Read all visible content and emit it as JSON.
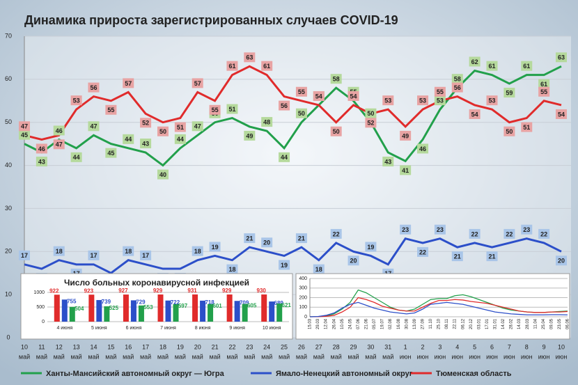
{
  "chart_data": [
    {
      "type": "line",
      "title": "Динамика прироста зарегистрированных случаев COVID-19",
      "categories": [
        "10",
        "11",
        "12",
        "13",
        "14",
        "15",
        "16",
        "17",
        "18",
        "19",
        "20",
        "21",
        "22",
        "23",
        "24",
        "25",
        "26",
        "27",
        "28",
        "29",
        "30",
        "31",
        "1",
        "2",
        "3",
        "4",
        "5",
        "6",
        "7",
        "8",
        "9",
        "10"
      ],
      "category_months": [
        "май",
        "май",
        "май",
        "май",
        "май",
        "май",
        "май",
        "май",
        "май",
        "май",
        "май",
        "май",
        "май",
        "май",
        "май",
        "май",
        "май",
        "май",
        "май",
        "май",
        "май",
        "май",
        "июн",
        "июн",
        "июн",
        "июн",
        "июн",
        "июн",
        "июн",
        "июн",
        "июн",
        "июн"
      ],
      "ylim": [
        0,
        70
      ],
      "yticks": [
        0,
        10,
        20,
        30,
        40,
        50,
        60,
        70
      ],
      "grid": true,
      "legend": "bottom",
      "series": [
        {
          "name": "Ханты-Мансийский автономный округ — Югра",
          "color": "#22a04b",
          "label_color": "#b5d99c",
          "values": [
            45,
            43,
            46,
            44,
            47,
            45,
            44,
            43,
            40,
            44,
            47,
            50,
            51,
            49,
            48,
            44,
            50,
            54,
            58,
            55,
            50,
            43,
            41,
            46,
            53,
            58,
            62,
            61,
            59,
            61,
            61,
            63
          ]
        },
        {
          "name": "Ямало-Ненецкий автономный округ",
          "color": "#2c4fc9",
          "label_color": "#a9c5e8",
          "values": [
            17,
            16,
            18,
            17,
            17,
            15,
            18,
            17,
            16,
            16,
            18,
            19,
            18,
            21,
            20,
            19,
            21,
            18,
            22,
            20,
            19,
            17,
            23,
            22,
            23,
            21,
            22,
            21,
            22,
            23,
            22,
            20
          ]
        },
        {
          "name": "Тюменская область",
          "color": "#e02b2b",
          "label_color": "#e8a3a3",
          "values": [
            47,
            46,
            47,
            53,
            56,
            55,
            57,
            52,
            50,
            51,
            57,
            55,
            61,
            63,
            61,
            56,
            55,
            54,
            50,
            54,
            52,
            53,
            49,
            53,
            55,
            56,
            54,
            53,
            50,
            51,
            55,
            54
          ]
        }
      ]
    },
    {
      "type": "bar",
      "title": "Число больных коронавирусной инфекцией",
      "categories": [
        "4 июня",
        "5 июня",
        "6 июня",
        "7 июня",
        "8 июня",
        "9 июня",
        "10 июня"
      ],
      "ylim": [
        0,
        1000
      ],
      "yticks": [
        0,
        500,
        1000
      ],
      "grid": true,
      "series": [
        {
          "color": "#e02b2b",
          "values": [
            922,
            923,
            927,
            929,
            931,
            929,
            930
          ]
        },
        {
          "color": "#2c4fc9",
          "values": [
            755,
            739,
            729,
            722,
            718,
            709,
            689
          ]
        },
        {
          "color": "#22a04b",
          "values": [
            504,
            525,
            553,
            597,
            601,
            605,
            621
          ]
        }
      ]
    },
    {
      "type": "line",
      "categories": [
        "15.03",
        "29.03",
        "12.04",
        "26.04",
        "10.05",
        "24.05",
        "07.06",
        "21.06",
        "05.07",
        "19.07",
        "02.08",
        "16.08",
        "30.08",
        "13.09",
        "27.09",
        "11.10",
        "25.10",
        "08.11",
        "22.11",
        "06.12",
        "20.12",
        "03.01",
        "17.01",
        "31.01",
        "14.02",
        "28.02",
        "14.03",
        "28.03",
        "11.04",
        "25.04",
        "09.05",
        "23.05",
        "06.06"
      ],
      "ylim": [
        0,
        400
      ],
      "yticks": [
        0,
        100,
        200,
        300,
        400
      ],
      "grid": true,
      "series": [
        {
          "color": "#22a04b",
          "values": [
            0,
            2,
            10,
            30,
            80,
            150,
            280,
            250,
            200,
            150,
            100,
            70,
            60,
            80,
            130,
            180,
            190,
            190,
            220,
            230,
            210,
            180,
            150,
            120,
            90,
            70,
            60,
            50,
            45,
            45,
            50,
            55,
            60
          ]
        },
        {
          "color": "#e02b2b",
          "values": [
            0,
            1,
            5,
            15,
            50,
            100,
            200,
            180,
            150,
            110,
            90,
            70,
            60,
            60,
            100,
            140,
            170,
            170,
            180,
            175,
            160,
            150,
            140,
            120,
            100,
            80,
            60,
            50,
            45,
            45,
            50,
            50,
            55
          ]
        },
        {
          "color": "#2c4fc9",
          "values": [
            0,
            3,
            15,
            40,
            90,
            130,
            150,
            120,
            90,
            70,
            50,
            40,
            30,
            40,
            80,
            130,
            140,
            150,
            140,
            130,
            110,
            90,
            70,
            50,
            40,
            30,
            25,
            20,
            20,
            20,
            22,
            22,
            20
          ]
        }
      ]
    }
  ]
}
